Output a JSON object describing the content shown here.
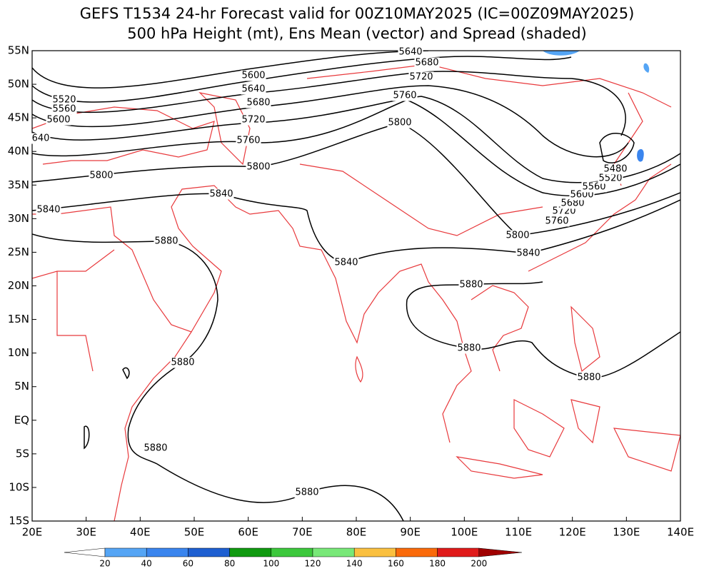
{
  "header": {
    "title_line1": "GEFS T1534 24-hr Forecast valid for 00Z10MAY2025 (IC=00Z09MAY2025)",
    "title_line2": "500 hPa Height (mt), Ens Mean (vector) and Spread (shaded)"
  },
  "map": {
    "lat_labels": [
      "55N",
      "50N",
      "45N",
      "40N",
      "35N",
      "30N",
      "25N",
      "20N",
      "15N",
      "10N",
      "5N",
      "EQ",
      "5S",
      "10S",
      "15S"
    ],
    "lon_labels": [
      "20E",
      "30E",
      "40E",
      "50E",
      "60E",
      "70E",
      "80E",
      "90E",
      "100E",
      "110E",
      "120E",
      "130E",
      "140E"
    ],
    "contour_labels": [
      "5640",
      "5680",
      "5720",
      "5600",
      "5640",
      "5680",
      "5720",
      "5760",
      "5760",
      "5800",
      "5800",
      "5800",
      "5840",
      "5840",
      "5880",
      "5840",
      "5840",
      "5800",
      "5760",
      "5720",
      "5680",
      "5600",
      "5560",
      "5520",
      "5480",
      "5520",
      "5560",
      "5600",
      "640",
      "5880",
      "5880",
      "5880",
      "5880",
      "5880",
      "5880"
    ]
  },
  "colorbar": {
    "ticks": [
      20,
      40,
      60,
      80,
      100,
      120,
      140,
      160,
      180,
      200
    ]
  }
}
